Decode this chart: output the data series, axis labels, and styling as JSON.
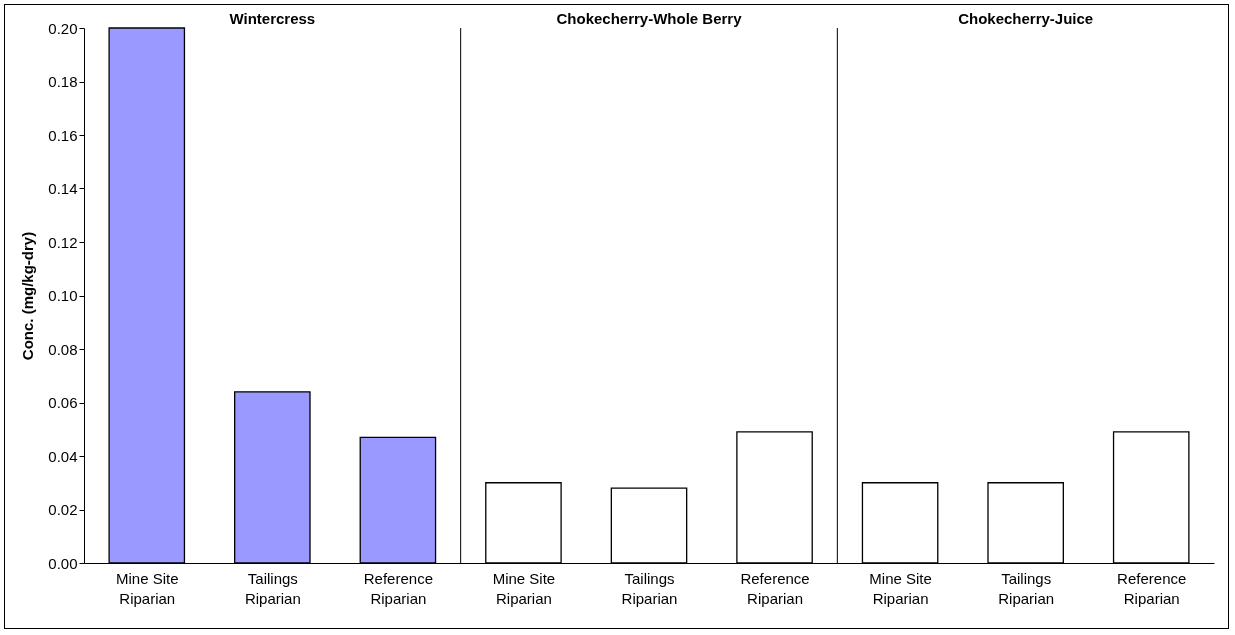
{
  "chart_data": {
    "type": "bar",
    "ylabel": "Conc. (mg/kg-dry)",
    "categories": [
      "Mine Site\nRiparian",
      "Tailings\nRiparian",
      "Reference\nRiparian",
      "Mine Site\nRiparian",
      "Tailings\nRiparian",
      "Reference\nRiparian",
      "Mine Site\nRiparian",
      "Tailings\nRiparian",
      "Reference\nRiparian"
    ],
    "values": [
      0.2,
      0.064,
      0.047,
      0.03,
      0.028,
      0.049,
      0.03,
      0.03,
      0.049
    ],
    "colors": [
      "#9999ff",
      "#9999ff",
      "#9999ff",
      "#ffffff",
      "#ffffff",
      "#ffffff",
      "#ffffff",
      "#ffffff",
      "#ffffff"
    ],
    "ylim": [
      0,
      0.2
    ],
    "yticks": [
      {
        "value": 0,
        "label": "0.00"
      },
      {
        "value": 0.02,
        "label": "0.02"
      },
      {
        "value": 0.04,
        "label": "0.04"
      },
      {
        "value": 0.06,
        "label": "0.06"
      },
      {
        "value": 0.08,
        "label": "0.08"
      },
      {
        "value": 0.1,
        "label": "0.10"
      },
      {
        "value": 0.12,
        "label": "0.12"
      },
      {
        "value": 0.14,
        "label": "0.14"
      },
      {
        "value": 0.16,
        "label": "0.16"
      },
      {
        "value": 0.18,
        "label": "0.18"
      },
      {
        "value": 0.2,
        "label": "0.20"
      }
    ],
    "annotations": [
      "Wintercress",
      "Chokecherry-Whole Berry",
      "Chokecherry-Juice"
    ],
    "grid": false
  }
}
